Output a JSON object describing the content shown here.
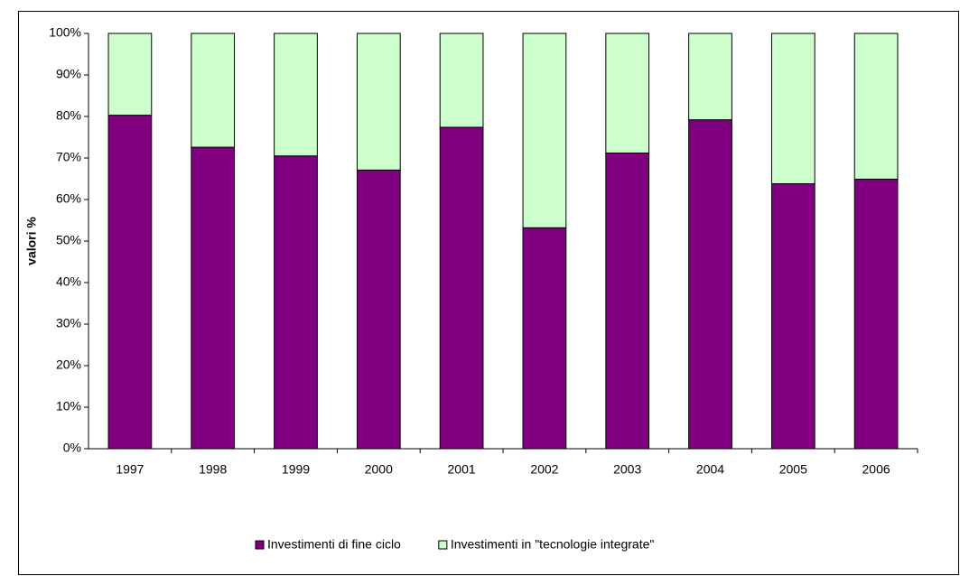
{
  "chart_data": {
    "type": "stacked_bar",
    "y_label": "valori %",
    "categories": [
      "1997",
      "1998",
      "1999",
      "2000",
      "2001",
      "2002",
      "2003",
      "2004",
      "2005",
      "2006"
    ],
    "series": [
      {
        "name": "Investimenti di fine ciclo",
        "color": "#800080",
        "values": [
          80.3,
          72.6,
          70.5,
          67.1,
          77.4,
          53.2,
          71.2,
          79.2,
          63.8,
          64.9
        ]
      },
      {
        "name": "Investimenti in \"tecnologie integrate\"",
        "color": "#ccffcc",
        "values": [
          19.7,
          27.4,
          29.5,
          32.9,
          22.6,
          46.8,
          28.8,
          20.8,
          36.2,
          35.1
        ]
      }
    ],
    "ylim": [
      0,
      100
    ],
    "yticks": [
      {
        "value": 0,
        "label": "0%"
      },
      {
        "value": 10,
        "label": "10%"
      },
      {
        "value": 20,
        "label": "20%"
      },
      {
        "value": 30,
        "label": "30%"
      },
      {
        "value": 40,
        "label": "40%"
      },
      {
        "value": 50,
        "label": "50%"
      },
      {
        "value": 60,
        "label": "60%"
      },
      {
        "value": 70,
        "label": "70%"
      },
      {
        "value": 80,
        "label": "80%"
      },
      {
        "value": 90,
        "label": "90%"
      },
      {
        "value": 100,
        "label": "100%"
      }
    ],
    "grid": false,
    "legend": "bottom"
  }
}
